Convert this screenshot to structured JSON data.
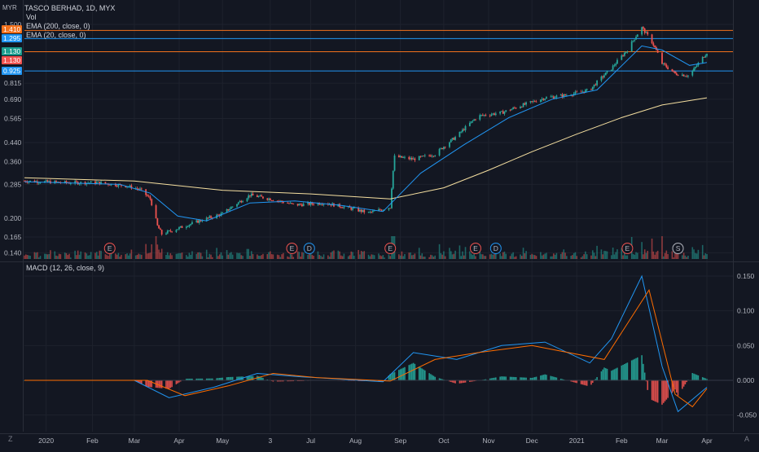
{
  "header": {
    "title": "TASCO BERHAD, 1D, MYX",
    "vol_label": "Vol",
    "ema200_label": "EMA (200, close, 0)",
    "ema20_label": "EMA (20, close, 0)",
    "macd_label": "MACD (12, 26, close, 9)",
    "currency_label": "MYR",
    "corner_letter_left": "Z",
    "corner_letter_right": "A"
  },
  "price_tags": [
    {
      "text": "1.410",
      "color": "#f2711c"
    },
    {
      "text": "1.295",
      "color": "#2196f3"
    },
    {
      "text": "1.130",
      "color": "#1b9d8f"
    },
    {
      "text": "1.130",
      "color": "#f05350"
    },
    {
      "text": "0.925",
      "color": "#2196f3"
    }
  ],
  "colors": {
    "background": "#131722",
    "up": "#26a69a",
    "down": "#ef5350",
    "ema20": "#2196f3",
    "ema200": "#f5dfa0",
    "macd_line": "#2196f3",
    "signal_line": "#ff6d00",
    "level_orange": "#f2711c",
    "level_blue": "#2196f3"
  },
  "events": [
    {
      "letter": "E",
      "x_date": "2020-02-13",
      "color": "#ef5350"
    },
    {
      "letter": "E",
      "x_date": "2020-06-18",
      "color": "#ef5350"
    },
    {
      "letter": "D",
      "x_date": "2020-06-30",
      "color": "#2196f3"
    },
    {
      "letter": "E",
      "x_date": "2020-08-25",
      "color": "#ef5350"
    },
    {
      "letter": "E",
      "x_date": "2020-10-23",
      "color": "#ef5350"
    },
    {
      "letter": "D",
      "x_date": "2020-11-06",
      "color": "#2196f3"
    },
    {
      "letter": "E",
      "x_date": "2021-02-05",
      "color": "#ef5350"
    },
    {
      "letter": "S",
      "x_date": "2021-03-12",
      "color": "#b2b5be"
    }
  ],
  "chart_data": [
    {
      "type": "candlestick",
      "title": "TASCO BERHAD, 1D, MYX",
      "ylabel": "MYR",
      "y_scale": "log",
      "ylim": [
        0.13,
        1.6
      ],
      "y_ticks": [
        "1.500",
        "0.815",
        "0.690",
        "0.565",
        "0.440",
        "0.360",
        "0.285",
        "0.200",
        "0.165",
        "0.140"
      ],
      "x_ticks": [
        "2020",
        "Feb",
        "Mar",
        "Apr",
        "May",
        "3",
        "Jul",
        "Aug",
        "Sep",
        "Oct",
        "Nov",
        "Dec",
        "2021",
        "Feb",
        "Mar",
        "Apr"
      ],
      "horizontal_levels": [
        {
          "value": 1.41,
          "color": "#f2711c"
        },
        {
          "value": 1.295,
          "color": "#2196f3"
        },
        {
          "value": 1.13,
          "color": "#f2711c"
        },
        {
          "value": 0.925,
          "color": "#2196f3"
        }
      ],
      "close_path": [
        {
          "date": "2019-12-16",
          "close": 0.295
        },
        {
          "date": "2020-01-15",
          "close": 0.29
        },
        {
          "date": "2020-02-05",
          "close": 0.29
        },
        {
          "date": "2020-02-25",
          "close": 0.28
        },
        {
          "date": "2020-03-05",
          "close": 0.27
        },
        {
          "date": "2020-03-12",
          "close": 0.245
        },
        {
          "date": "2020-03-17",
          "close": 0.185
        },
        {
          "date": "2020-03-20",
          "close": 0.17
        },
        {
          "date": "2020-03-31",
          "close": 0.18
        },
        {
          "date": "2020-04-15",
          "close": 0.195
        },
        {
          "date": "2020-05-01",
          "close": 0.21
        },
        {
          "date": "2020-05-20",
          "close": 0.255
        },
        {
          "date": "2020-06-03",
          "close": 0.245
        },
        {
          "date": "2020-06-20",
          "close": 0.23
        },
        {
          "date": "2020-07-10",
          "close": 0.235
        },
        {
          "date": "2020-07-25",
          "close": 0.225
        },
        {
          "date": "2020-08-10",
          "close": 0.212
        },
        {
          "date": "2020-08-25",
          "close": 0.225
        },
        {
          "date": "2020-08-28",
          "close": 0.38
        },
        {
          "date": "2020-09-10",
          "close": 0.37
        },
        {
          "date": "2020-09-25",
          "close": 0.39
        },
        {
          "date": "2020-10-10",
          "close": 0.47
        },
        {
          "date": "2020-10-25",
          "close": 0.58
        },
        {
          "date": "2020-11-10",
          "close": 0.6
        },
        {
          "date": "2020-11-25",
          "close": 0.65
        },
        {
          "date": "2020-12-10",
          "close": 0.7
        },
        {
          "date": "2020-12-25",
          "close": 0.72
        },
        {
          "date": "2021-01-10",
          "close": 0.76
        },
        {
          "date": "2021-01-25",
          "close": 0.95
        },
        {
          "date": "2021-02-05",
          "close": 1.15
        },
        {
          "date": "2021-02-15",
          "close": 1.45
        },
        {
          "date": "2021-02-22",
          "close": 1.25
        },
        {
          "date": "2021-03-01",
          "close": 1.0
        },
        {
          "date": "2021-03-10",
          "close": 0.9
        },
        {
          "date": "2021-03-20",
          "close": 0.88
        },
        {
          "date": "2021-04-01",
          "close": 1.12
        }
      ],
      "ema20": [
        {
          "date": "2019-12-16",
          "value": 0.293
        },
        {
          "date": "2020-02-20",
          "value": 0.285
        },
        {
          "date": "2020-03-12",
          "value": 0.26
        },
        {
          "date": "2020-03-31",
          "value": 0.205
        },
        {
          "date": "2020-04-20",
          "value": 0.195
        },
        {
          "date": "2020-05-20",
          "value": 0.235
        },
        {
          "date": "2020-06-20",
          "value": 0.24
        },
        {
          "date": "2020-07-20",
          "value": 0.23
        },
        {
          "date": "2020-08-20",
          "value": 0.215
        },
        {
          "date": "2020-09-15",
          "value": 0.32
        },
        {
          "date": "2020-10-15",
          "value": 0.43
        },
        {
          "date": "2020-11-15",
          "value": 0.57
        },
        {
          "date": "2020-12-15",
          "value": 0.69
        },
        {
          "date": "2021-01-15",
          "value": 0.76
        },
        {
          "date": "2021-02-15",
          "value": 1.2
        },
        {
          "date": "2021-03-01",
          "value": 1.15
        },
        {
          "date": "2021-03-20",
          "value": 0.98
        },
        {
          "date": "2021-04-01",
          "value": 1.01
        }
      ],
      "ema200": [
        {
          "date": "2019-12-16",
          "value": 0.305
        },
        {
          "date": "2020-03-01",
          "value": 0.295
        },
        {
          "date": "2020-05-01",
          "value": 0.268
        },
        {
          "date": "2020-07-01",
          "value": 0.258
        },
        {
          "date": "2020-08-25",
          "value": 0.245
        },
        {
          "date": "2020-10-01",
          "value": 0.275
        },
        {
          "date": "2020-11-01",
          "value": 0.33
        },
        {
          "date": "2020-12-01",
          "value": 0.4
        },
        {
          "date": "2021-01-01",
          "value": 0.48
        },
        {
          "date": "2021-02-01",
          "value": 0.57
        },
        {
          "date": "2021-03-01",
          "value": 0.65
        },
        {
          "date": "2021-04-01",
          "value": 0.7
        }
      ]
    },
    {
      "type": "line",
      "title": "MACD (12, 26, close, 9)",
      "ylim": [
        -0.07,
        0.17
      ],
      "y_ticks": [
        "0.150",
        "0.100",
        "0.050",
        "0.000",
        "-0.050"
      ],
      "series": [
        {
          "name": "MACD",
          "color": "#2196f3",
          "points": [
            {
              "date": "2019-12-16",
              "value": 0.0
            },
            {
              "date": "2020-03-01",
              "value": 0.0
            },
            {
              "date": "2020-03-25",
              "value": -0.025
            },
            {
              "date": "2020-04-25",
              "value": -0.01
            },
            {
              "date": "2020-05-25",
              "value": 0.01
            },
            {
              "date": "2020-06-25",
              "value": 0.005
            },
            {
              "date": "2020-08-20",
              "value": -0.002
            },
            {
              "date": "2020-09-10",
              "value": 0.04
            },
            {
              "date": "2020-10-10",
              "value": 0.03
            },
            {
              "date": "2020-11-10",
              "value": 0.05
            },
            {
              "date": "2020-12-10",
              "value": 0.055
            },
            {
              "date": "2021-01-10",
              "value": 0.025
            },
            {
              "date": "2021-01-25",
              "value": 0.06
            },
            {
              "date": "2021-02-15",
              "value": 0.15
            },
            {
              "date": "2021-03-01",
              "value": 0.02
            },
            {
              "date": "2021-03-12",
              "value": -0.045
            },
            {
              "date": "2021-04-01",
              "value": -0.01
            }
          ]
        },
        {
          "name": "Signal",
          "color": "#ff6d00",
          "points": [
            {
              "date": "2019-12-16",
              "value": 0.0
            },
            {
              "date": "2020-03-10",
              "value": 0.0
            },
            {
              "date": "2020-04-05",
              "value": -0.022
            },
            {
              "date": "2020-05-05",
              "value": -0.008
            },
            {
              "date": "2020-06-05",
              "value": 0.01
            },
            {
              "date": "2020-07-05",
              "value": 0.004
            },
            {
              "date": "2020-08-25",
              "value": -0.001
            },
            {
              "date": "2020-09-25",
              "value": 0.03
            },
            {
              "date": "2020-10-25",
              "value": 0.04
            },
            {
              "date": "2020-12-01",
              "value": 0.05
            },
            {
              "date": "2021-01-20",
              "value": 0.03
            },
            {
              "date": "2021-02-20",
              "value": 0.13
            },
            {
              "date": "2021-03-10",
              "value": -0.02
            },
            {
              "date": "2021-03-22",
              "value": -0.038
            },
            {
              "date": "2021-04-01",
              "value": -0.012
            }
          ]
        }
      ]
    }
  ]
}
